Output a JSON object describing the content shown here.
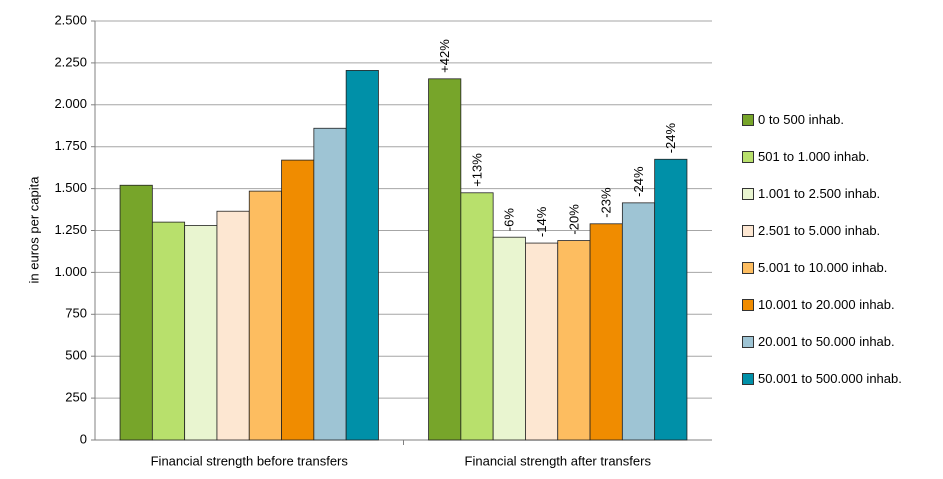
{
  "chart_data": {
    "type": "bar",
    "ylabel": "in euros per capita",
    "categories": [
      "Financial strength before transfers",
      "Financial strength after transfers"
    ],
    "series": [
      {
        "name": "0 to 500 inhab.",
        "color": "#77a52a",
        "values": [
          1520,
          2155
        ]
      },
      {
        "name": "501 to 1.000 inhab.",
        "color": "#b8e06c",
        "values": [
          1300,
          1475
        ]
      },
      {
        "name": "1.001 to 2.500 inhab.",
        "color": "#e9f5d0",
        "values": [
          1280,
          1210
        ]
      },
      {
        "name": "2.501 to 5.000 inhab.",
        "color": "#fde7d2",
        "values": [
          1365,
          1175
        ]
      },
      {
        "name": "5.001 to 10.000 inhab.",
        "color": "#fdbd60",
        "values": [
          1485,
          1190
        ]
      },
      {
        "name": "10.001 to 20.000 inhab.",
        "color": "#f08c00",
        "values": [
          1670,
          1290
        ]
      },
      {
        "name": "20.001 to 50.000 inhab.",
        "color": "#9ec4d4",
        "values": [
          1860,
          1415
        ]
      },
      {
        "name": "50.001 to 500.000 inhab.",
        "color": "#0090a8",
        "values": [
          2205,
          1675
        ]
      }
    ],
    "annotations": [
      "+42%",
      "+13%",
      "-6%",
      "-14%",
      "-20%",
      "-23%",
      "-24%",
      "-24%"
    ],
    "ylim": [
      0,
      2500
    ],
    "yticks": [
      0,
      250,
      500,
      750,
      {
        "value": 1000,
        "label": "1.000"
      },
      {
        "value": 1250,
        "label": "1.250"
      },
      {
        "value": 1500,
        "label": "1.500"
      },
      {
        "value": 1750,
        "label": "1.750"
      },
      {
        "value": 2000,
        "label": "2.000"
      },
      {
        "value": 2250,
        "label": "2.250"
      },
      {
        "value": 2500,
        "label": "2.500"
      }
    ],
    "grid": true,
    "legend": "right"
  }
}
